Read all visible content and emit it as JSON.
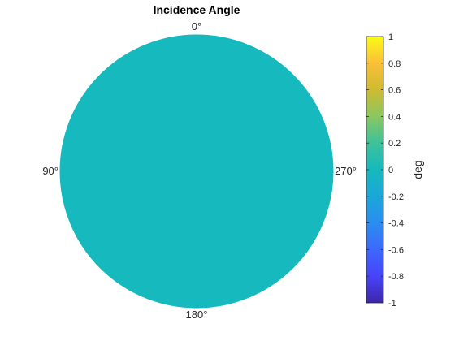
{
  "chart_data": {
    "type": "heatmap",
    "title": "Incidence Angle",
    "projection": "polar-disc",
    "angle_labels": [
      "0°",
      "90°",
      "180°",
      "270°"
    ],
    "field_value": 0,
    "colorbar": {
      "label": "deg",
      "limits": [
        -1,
        1
      ],
      "ticks": [
        -1,
        -0.8,
        -0.6,
        -0.4,
        -0.2,
        0,
        0.2,
        0.4,
        0.6,
        0.8,
        1
      ],
      "tick_labels": [
        "-1",
        "-0.8",
        "-0.6",
        "-0.4",
        "-0.2",
        "0",
        "0.2",
        "0.4",
        "0.6",
        "0.8",
        "1"
      ],
      "colormap": "parula",
      "colormap_stops": [
        "#3e26a8",
        "#4743f8",
        "#3d68fb",
        "#2b8def",
        "#1ba7d8",
        "#16b9bd",
        "#3ec29a",
        "#8ac760",
        "#cebb32",
        "#fbbf39",
        "#f9fb15"
      ]
    }
  }
}
